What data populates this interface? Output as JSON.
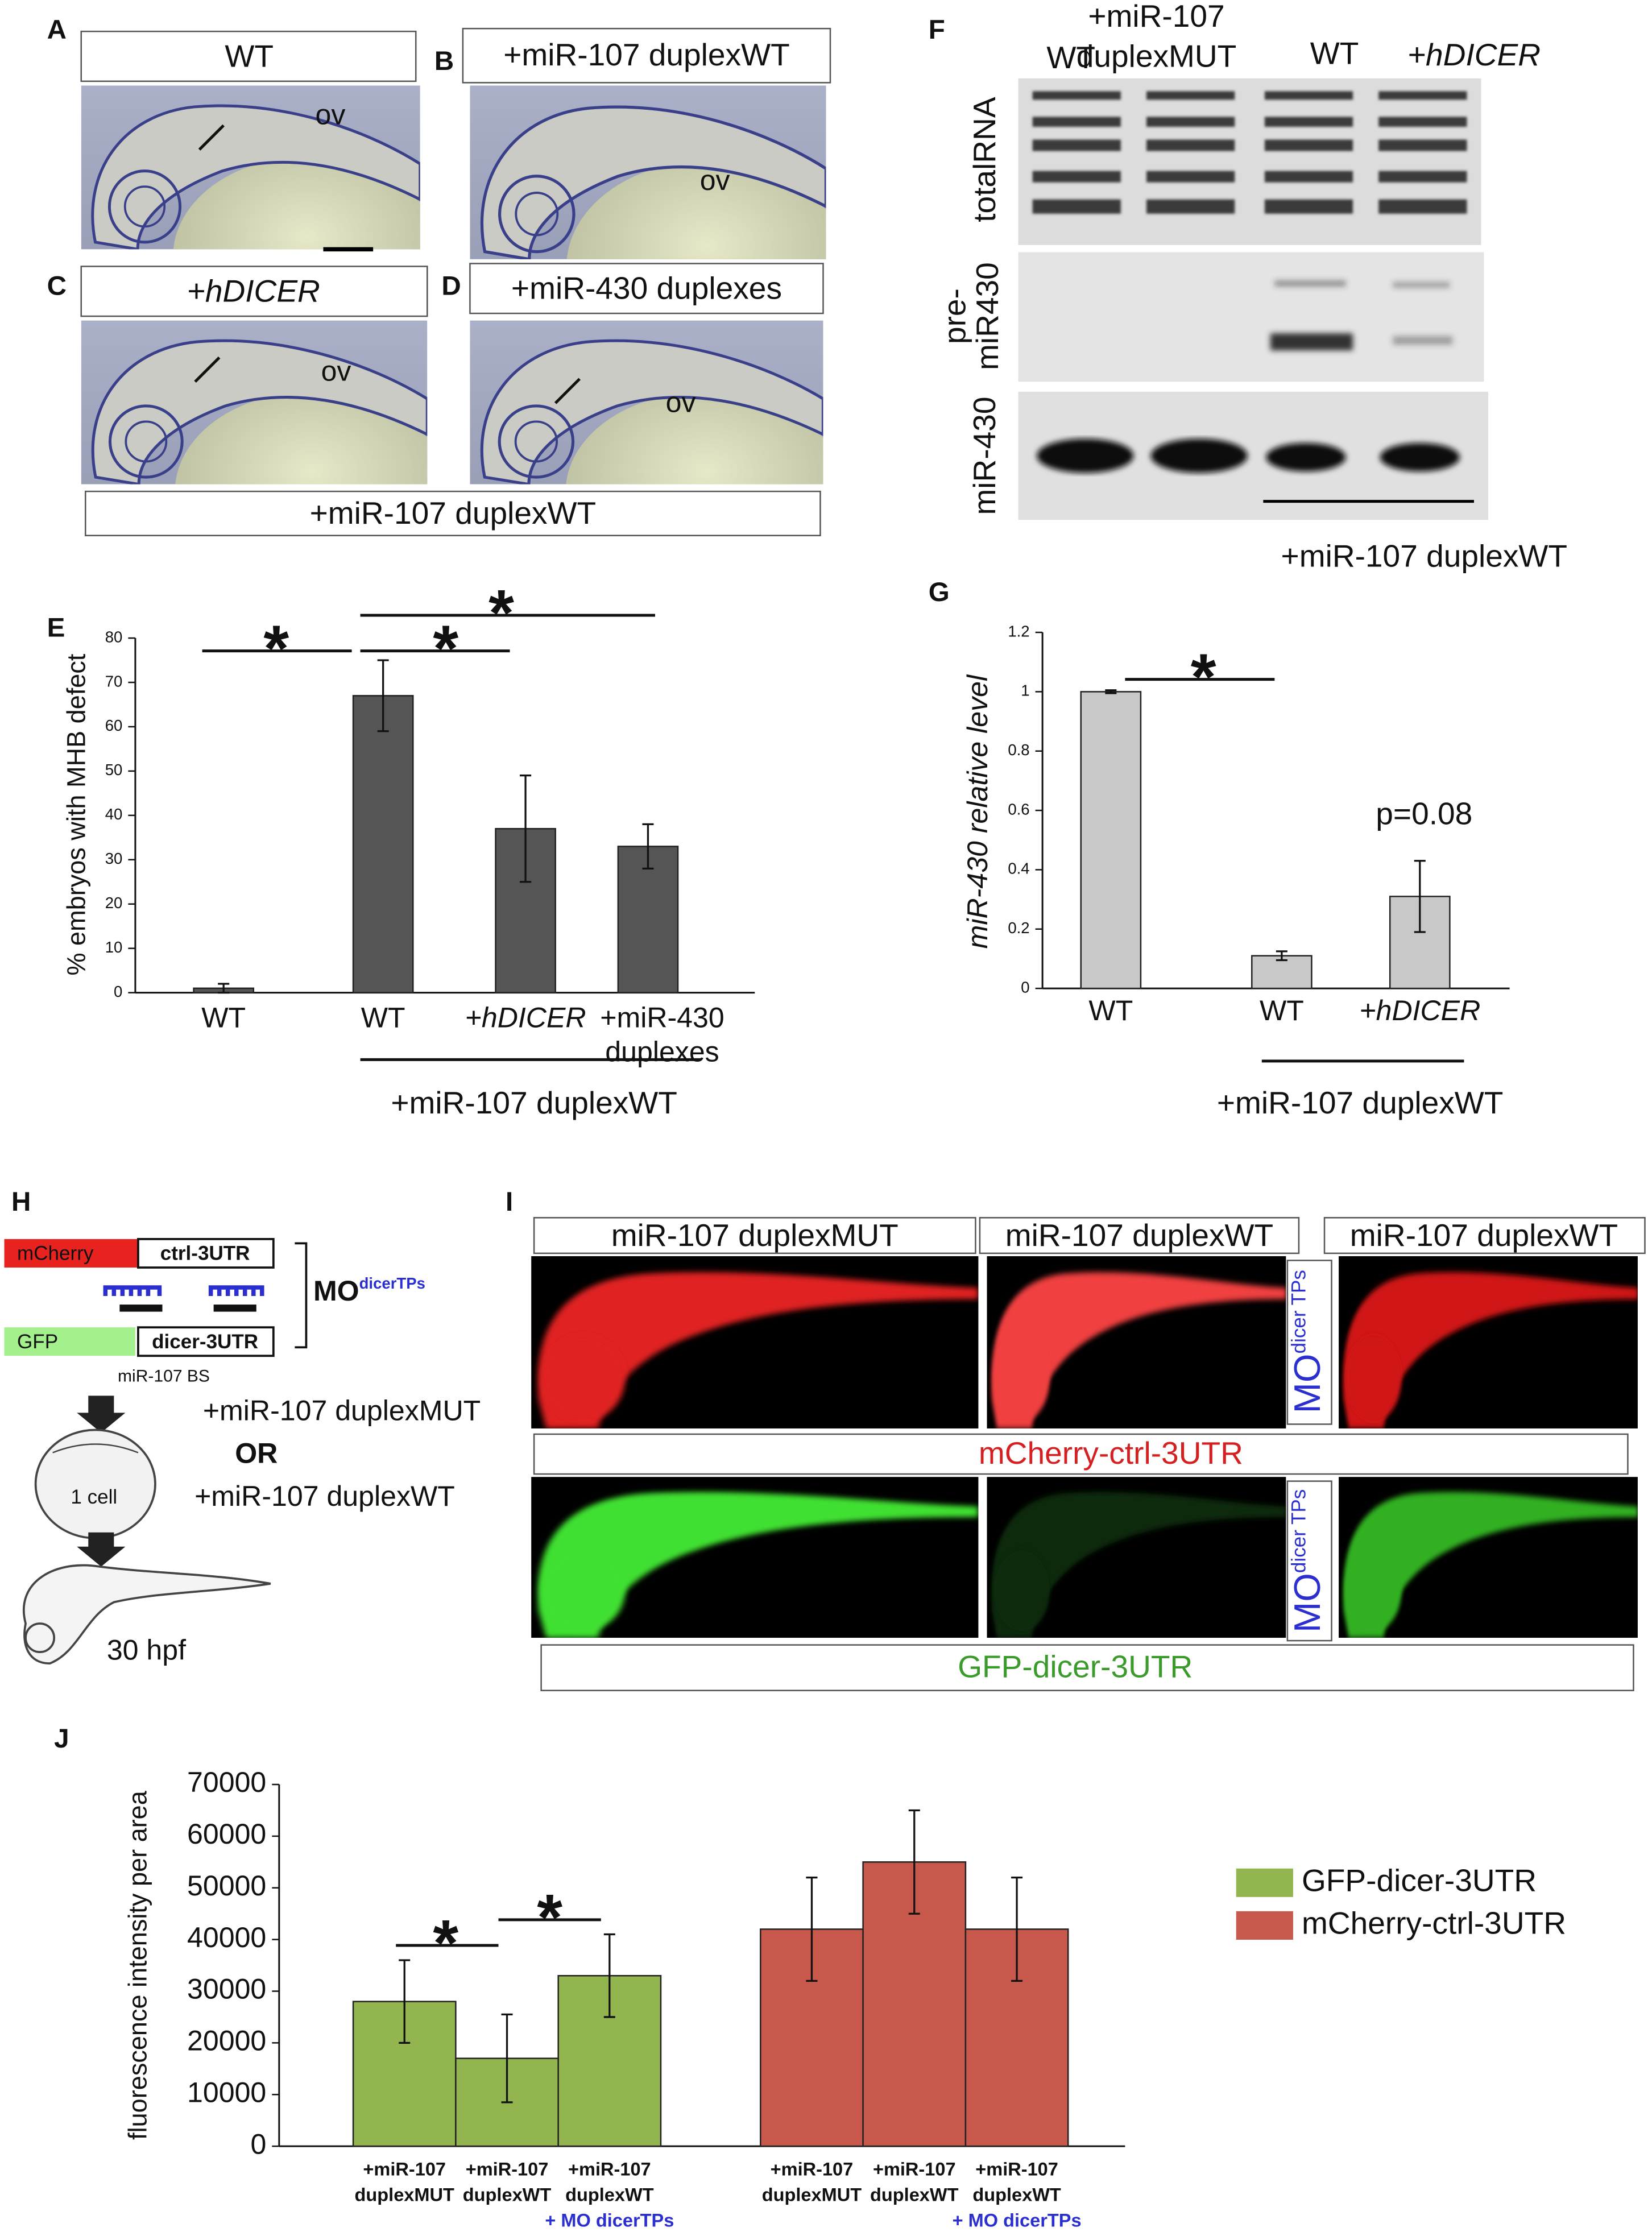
{
  "panel_letters": {
    "a": "A",
    "b": "B",
    "c": "C",
    "d": "D",
    "e": "E",
    "f": "F",
    "g": "G",
    "h": "H",
    "i": "I",
    "j": "J"
  },
  "embryos": {
    "wt": "WT",
    "duplex_wt": "+miR-107 duplexWT",
    "hdicer": "+hDICER",
    "mir430": "+miR-430 duplexes",
    "bottom": "+miR-107 duplexWT",
    "ov": "ov"
  },
  "gel": {
    "columns": [
      "WT",
      [
        "+miR-107",
        "duplexMUT"
      ],
      "WT",
      "+hDICER"
    ],
    "rows": [
      "totalRNA",
      [
        "pre-",
        "miR430"
      ],
      "miR-430"
    ],
    "bottom": "+miR-107 duplexWT"
  },
  "schematic": {
    "reporter1": "mCherry",
    "utr1": "ctrl-3UTR",
    "reporter2": "GFP",
    "utr2": "dicer-3UTR",
    "site": "miR-107 BS",
    "morpholino": "MO",
    "morpholino_sup": "dicerTPs",
    "cell": "1 cell",
    "injection1": "+miR-107 duplexMUT",
    "or": "OR",
    "injection2": "+miR-107 duplexWT",
    "stage": "30 hpf"
  },
  "fluorescence": {
    "columns": [
      "miR-107 duplexMUT",
      "miR-107 duplexWT",
      "miR-107 duplexWT"
    ],
    "morpholino": "MO",
    "morpholino_sup": "dicer TPs",
    "red_label": "mCherry-ctrl-3UTR",
    "green_label": "GFP-dicer-3UTR"
  },
  "chart_data": [
    {
      "type": "bar",
      "ylabel": "% embryos with MHB defect",
      "categories": [
        "WT",
        "WT",
        "+hDICER",
        [
          "+miR-430",
          "duplexes"
        ]
      ],
      "values": [
        1,
        67,
        37,
        33
      ],
      "errors": [
        1,
        8,
        12,
        5
      ],
      "color": "#555555",
      "ylim": [
        0,
        80
      ],
      "yticks": [
        0,
        10,
        20,
        30,
        40,
        50,
        60,
        70,
        80
      ],
      "group_label": "+miR-107 duplexWT",
      "significance": [
        "*",
        "*",
        "*"
      ]
    },
    {
      "type": "bar",
      "ylabel": "miR-430 relative level",
      "categories": [
        "WT",
        "WT",
        "+hDICER"
      ],
      "values": [
        1,
        0.11,
        0.31
      ],
      "errors": [
        0.005,
        0.015,
        0.12
      ],
      "color": "#c8c8c8",
      "ylim": [
        0,
        1.2
      ],
      "yticks": [
        0,
        0.2,
        0.4,
        0.6,
        0.8,
        1,
        1.2
      ],
      "group_label": "+miR-107 duplexWT",
      "significance": [
        "*"
      ],
      "annotation": "p=0.08"
    },
    {
      "type": "bar",
      "ylabel": "fluorescence intensity per area",
      "categories": [
        [
          "+miR-107",
          "duplexMUT"
        ],
        [
          "+miR-107",
          "duplexWT"
        ],
        [
          "+miR-107",
          "duplexWT",
          "+ MO dicerTPs"
        ]
      ],
      "series": [
        {
          "name": "GFP-dicer-3UTR",
          "color": "#93b550",
          "values": [
            28000,
            17000,
            33000
          ],
          "errors": [
            8000,
            8500,
            8000
          ]
        },
        {
          "name": "mCherry-ctrl-3UTR",
          "color": "#c8584b",
          "values": [
            42000,
            55000,
            42000
          ],
          "errors": [
            10000,
            10000,
            10000
          ]
        }
      ],
      "ylim": [
        0,
        70000
      ],
      "yticks": [
        0,
        10000,
        20000,
        30000,
        40000,
        50000,
        60000,
        70000
      ],
      "significance": [
        "*",
        "*"
      ],
      "legend": "right"
    }
  ]
}
